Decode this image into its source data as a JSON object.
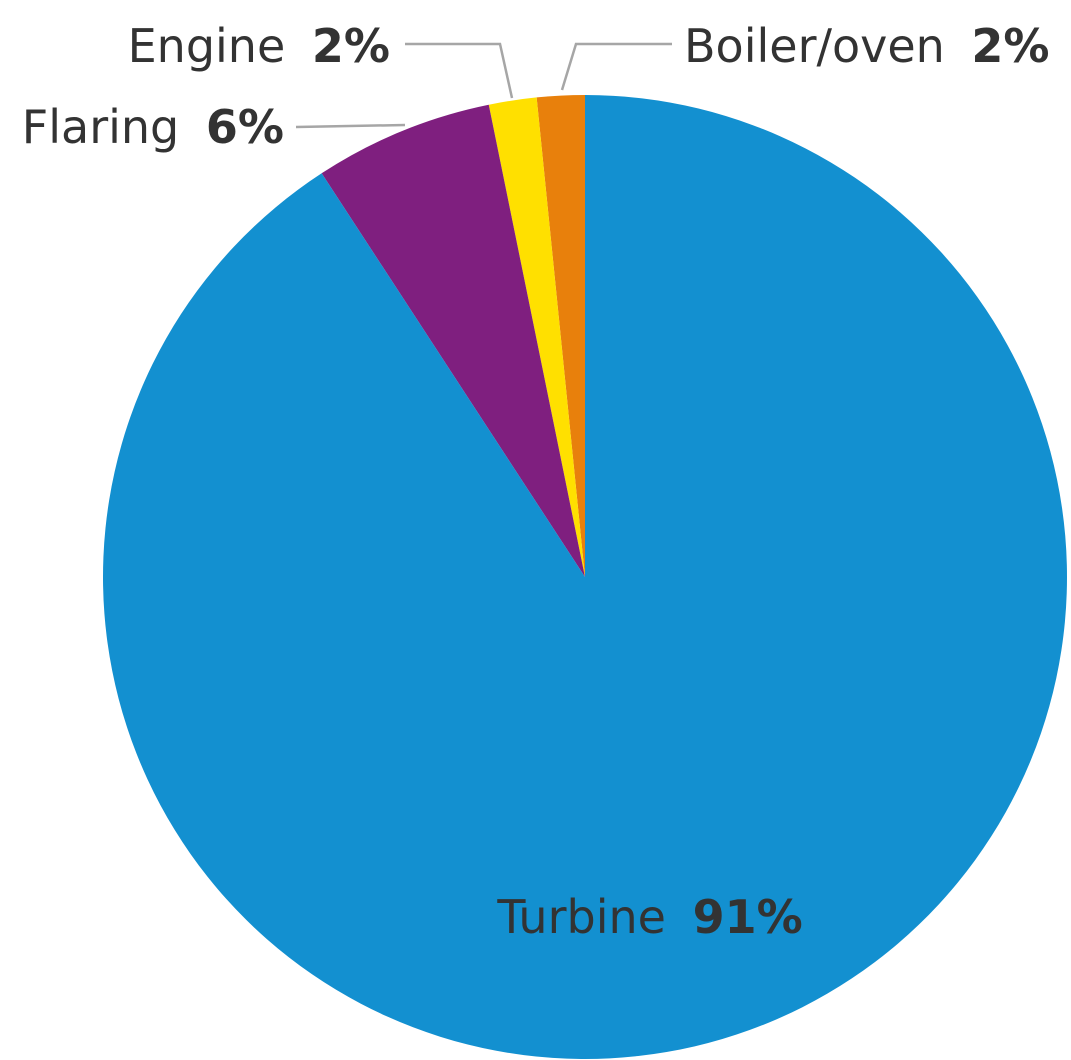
{
  "chart_data": {
    "type": "pie",
    "start_angle_deg": 0,
    "direction": "counterclockwise",
    "slices": [
      {
        "label": "Boiler/oven",
        "value_label": "2%",
        "value": 1.6,
        "color": "#E8800C"
      },
      {
        "label": "Engine",
        "value_label": "2%",
        "value": 1.6,
        "color": "#FFE000"
      },
      {
        "label": "Flaring",
        "value_label": "6%",
        "value": 6.0,
        "color": "#7F1F7F"
      },
      {
        "label": "Turbine",
        "value_label": "91%",
        "value": 90.8,
        "color": "#1390D0"
      }
    ]
  }
}
